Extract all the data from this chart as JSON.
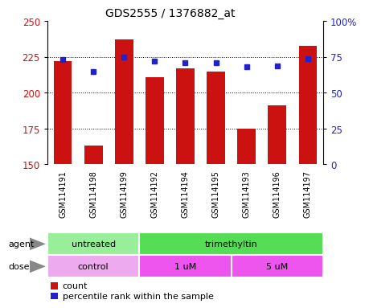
{
  "title": "GDS2555 / 1376882_at",
  "samples": [
    "GSM114191",
    "GSM114198",
    "GSM114199",
    "GSM114192",
    "GSM114194",
    "GSM114195",
    "GSM114193",
    "GSM114196",
    "GSM114197"
  ],
  "bar_values": [
    222,
    163,
    237,
    211,
    217,
    215,
    175,
    191,
    233
  ],
  "dot_values_pct": [
    73,
    65,
    75,
    72,
    71,
    71,
    68,
    69,
    74
  ],
  "ymin": 150,
  "ymax": 250,
  "yticks": [
    150,
    175,
    200,
    225,
    250
  ],
  "right_yticks": [
    0,
    25,
    50,
    75,
    100
  ],
  "bar_color": "#cc1111",
  "dot_color": "#2222cc",
  "agent_groups": [
    {
      "label": "untreated",
      "start": 0,
      "end": 3,
      "color": "#99ee99"
    },
    {
      "label": "trimethyltin",
      "start": 3,
      "end": 9,
      "color": "#55dd55"
    }
  ],
  "dose_groups": [
    {
      "label": "control",
      "start": 0,
      "end": 3,
      "color": "#eeaaee"
    },
    {
      "label": "1 uM",
      "start": 3,
      "end": 6,
      "color": "#ee55ee"
    },
    {
      "label": "5 uM",
      "start": 6,
      "end": 9,
      "color": "#ee55ee"
    }
  ],
  "legend_count_label": "count",
  "legend_pct_label": "percentile rank within the sample",
  "agent_label": "agent",
  "dose_label": "dose",
  "tick_area_color": "#c8c8c8"
}
